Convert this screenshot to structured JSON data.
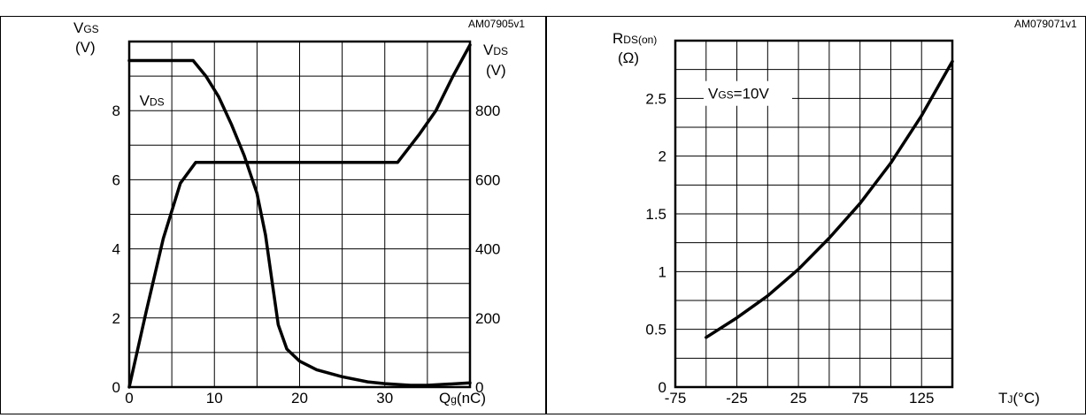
{
  "chart_data": [
    {
      "type": "line",
      "figure_id": "AM07905v1",
      "xlabel": "Q",
      "xlabel_sub": "g",
      "xlabel_unit": "(nC)",
      "ylabel": "V",
      "ylabel_sub": "GS",
      "ylabel_unit": "(V)",
      "y2label": "V",
      "y2label_sub": "DS",
      "y2label_unit": "(V)",
      "xlim": [
        0,
        40
      ],
      "ylim": [
        0,
        10
      ],
      "y2lim": [
        0,
        1000
      ],
      "xticks": [
        "0",
        "10",
        "20",
        "30"
      ],
      "yticks": [
        "0",
        "2",
        "4",
        "6",
        "8"
      ],
      "y2ticks": [
        "0",
        "200",
        "400",
        "600",
        "800"
      ],
      "grid": true,
      "annotations": [
        {
          "text": "V",
          "sub": "DS",
          "x": 1,
          "y": 8.3
        }
      ],
      "series": [
        {
          "name": "V_GS",
          "axis": "left",
          "x": [
            0,
            2,
            4,
            6,
            7.8,
            8,
            12,
            16,
            20,
            24,
            28,
            30,
            31.5,
            34,
            36,
            38,
            40
          ],
          "y": [
            0,
            2.2,
            4.3,
            5.9,
            6.5,
            6.5,
            6.5,
            6.5,
            6.5,
            6.5,
            6.5,
            6.5,
            6.5,
            7.3,
            8.0,
            9.0,
            9.9
          ]
        },
        {
          "name": "V_DS",
          "axis": "right",
          "x": [
            0,
            5,
            7.5,
            9,
            10.5,
            12,
            13.5,
            15,
            16,
            16.8,
            17.5,
            18.5,
            20,
            22,
            25,
            28,
            30,
            33,
            35,
            37,
            40
          ],
          "y": [
            945,
            945,
            945,
            900,
            840,
            760,
            670,
            560,
            440,
            300,
            180,
            110,
            75,
            50,
            30,
            15,
            10,
            5,
            5,
            8,
            12
          ]
        }
      ]
    },
    {
      "type": "line",
      "figure_id": "AM079071v1",
      "xlabel": "T",
      "xlabel_sub": "J",
      "xlabel_unit": "(°C)",
      "ylabel": "R",
      "ylabel_sub": "DS(on)",
      "ylabel_unit": "(Ω)",
      "xlim": [
        -75,
        150
      ],
      "ylim": [
        0,
        3
      ],
      "xticks": [
        "-75",
        "-25",
        "25",
        "75",
        "125"
      ],
      "yticks": [
        "0",
        "0.5",
        "1",
        "1.5",
        "2",
        "2.5"
      ],
      "grid": true,
      "annotations": [
        {
          "text": "V",
          "sub": "GS",
          "after": "=10V"
        }
      ],
      "series": [
        {
          "name": "R_DS(on) at V_GS=10V",
          "x": [
            -50,
            -25,
            0,
            25,
            50,
            75,
            100,
            125,
            150
          ],
          "y": [
            0.43,
            0.6,
            0.79,
            1.02,
            1.29,
            1.59,
            1.94,
            2.35,
            2.82
          ]
        }
      ]
    }
  ]
}
